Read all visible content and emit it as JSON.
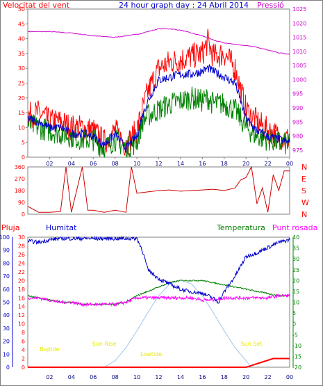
{
  "header": {
    "title": "24 hour graph day : 24 Abril 2014",
    "left_label": "Velocitat del vent",
    "right_label": "Pressió"
  },
  "legend_bottom": {
    "rain": "Pluja",
    "humidity": "Humitat",
    "temperature": "Temperatura",
    "dewpoint": "Punt rosada"
  },
  "colors": {
    "frame": "#808080",
    "wind_gust": "#ff0000",
    "wind_avg": "#008000",
    "wind_mean": "#0000cc",
    "pressure": "#cc00cc",
    "direction": "#cc0000",
    "humidity": "#0000cc",
    "temperature": "#008000",
    "dewpoint": "#ff00ff",
    "rain": "#ff0000",
    "solar": "#9cc6ee",
    "annotation": "#e8e800",
    "title": "#0000cc",
    "left_title": "#ff0000",
    "right_title": "#cc00cc"
  },
  "chart_data": [
    {
      "type": "line",
      "title": "24 hour graph day : 24 Abril 2014",
      "ylabel": "Velocitat del vent",
      "y2label": "Pressió",
      "x_ticks": [
        "02",
        "04",
        "06",
        "08",
        "10",
        "12",
        "14",
        "16",
        "18",
        "20",
        "22",
        "00"
      ],
      "x_hours": [
        2,
        4,
        6,
        8,
        10,
        12,
        14,
        16,
        18,
        20,
        22,
        24
      ],
      "ylim": [
        0,
        50
      ],
      "y_ticks": [
        0,
        5,
        10,
        15,
        20,
        25,
        30,
        35,
        40,
        45,
        50
      ],
      "y2lim": [
        972.5,
        1025
      ],
      "y2_ticks": [
        975,
        980,
        985,
        990,
        995,
        1000,
        1005,
        1010,
        1015,
        1020,
        1025
      ],
      "series": [
        {
          "name": "wind_gust",
          "x": [
            0,
            1,
            2,
            3,
            4,
            5,
            6,
            7,
            8,
            9,
            10,
            10.5,
            11,
            12,
            13,
            14,
            15,
            16,
            16.5,
            17,
            18,
            19,
            20,
            21,
            22,
            23,
            24
          ],
          "values": [
            14,
            15,
            12,
            12,
            10,
            10,
            9,
            5,
            9,
            4,
            9,
            16,
            22,
            30,
            32,
            33,
            34,
            35,
            39,
            34,
            35,
            30,
            16,
            12,
            9,
            7,
            6
          ]
        },
        {
          "name": "wind_avg",
          "x": [
            0,
            1,
            2,
            3,
            4,
            5,
            6,
            7,
            8,
            9,
            10,
            10.5,
            11,
            12,
            13,
            14,
            15,
            16,
            16.5,
            17,
            18,
            19,
            20,
            21,
            22,
            23,
            24
          ],
          "values": [
            11,
            10,
            9,
            8,
            7,
            6,
            6,
            3,
            6,
            3,
            5,
            12,
            14,
            16,
            18,
            19,
            20,
            19,
            20,
            18,
            18,
            16,
            10,
            7,
            6,
            5,
            4
          ]
        },
        {
          "name": "wind_mean",
          "x": [
            0,
            1,
            2,
            3,
            4,
            5,
            6,
            7,
            8,
            9,
            10,
            10.5,
            11,
            12,
            13,
            14,
            15,
            16,
            16.5,
            17,
            18,
            19,
            20,
            21,
            22,
            23,
            24
          ],
          "values": [
            13,
            12,
            10,
            10,
            8,
            8,
            7,
            4,
            8,
            3,
            7,
            14,
            19,
            26,
            27,
            28,
            28,
            29,
            30,
            29,
            27,
            25,
            13,
            9,
            7,
            6,
            5
          ]
        },
        {
          "name": "pressure",
          "y_axis": "right",
          "x": [
            0,
            2,
            4,
            6,
            8,
            10,
            11,
            12,
            13,
            14,
            15,
            16,
            17,
            18,
            19,
            20,
            21,
            22,
            23,
            24
          ],
          "values": [
            1017,
            1017,
            1016.5,
            1015.5,
            1015,
            1016,
            1017,
            1018,
            1018,
            1017.5,
            1016.5,
            1015.5,
            1014,
            1013,
            1012.5,
            1012,
            1011.5,
            1010.5,
            1009.5,
            1009
          ]
        }
      ]
    },
    {
      "type": "line",
      "ylabel": "",
      "y_ticks": [
        0,
        90,
        180,
        270,
        360
      ],
      "ylim": [
        0,
        360
      ],
      "y2_ticks": [
        "N",
        "W",
        "S",
        "E",
        "N"
      ],
      "series": [
        {
          "name": "direction",
          "x": [
            0,
            1,
            2,
            3,
            3.5,
            4,
            5,
            5.5,
            6,
            7,
            8,
            9,
            9.5,
            10,
            11,
            12,
            13,
            14,
            15,
            16,
            17,
            18,
            19,
            19.5,
            20,
            20.5,
            21,
            21.5,
            22,
            22.5,
            23,
            23.5,
            24
          ],
          "values": [
            60,
            15,
            15,
            20,
            360,
            15,
            360,
            30,
            30,
            15,
            30,
            15,
            360,
            160,
            170,
            180,
            185,
            175,
            180,
            185,
            190,
            180,
            200,
            260,
            280,
            360,
            80,
            200,
            15,
            300,
            180,
            330,
            330
          ]
        }
      ]
    },
    {
      "type": "line",
      "ylabel": "Humitat",
      "y_ticks": [
        0,
        10,
        20,
        30,
        40,
        50,
        60,
        70,
        80,
        90,
        100
      ],
      "ylim": [
        0,
        100
      ],
      "y_rain_ticks": [
        0,
        2,
        4,
        6,
        8,
        10,
        12,
        14,
        16,
        18,
        20,
        22,
        24,
        26,
        28,
        30
      ],
      "y_rain_lim": [
        0,
        30
      ],
      "y2_ticks": [
        -20,
        -15,
        -10,
        -5,
        0,
        5,
        10,
        15,
        20,
        25,
        30,
        35,
        40
      ],
      "y2lim": [
        -20,
        40
      ],
      "annotations": [
        {
          "text": "Sun Rise",
          "hour": 7.0
        },
        {
          "text": "Sun Set",
          "hour": 20.5
        },
        {
          "text": "Lowtide",
          "hour": 11.3
        },
        {
          "text": "Bajtide",
          "hour": 2.0
        }
      ],
      "series": [
        {
          "name": "humidity",
          "x": [
            0,
            1,
            2,
            3,
            4,
            5,
            6,
            7,
            8,
            9,
            10,
            10.5,
            11,
            12,
            13,
            14,
            15,
            16,
            17,
            17.5,
            18,
            19,
            20,
            21,
            22,
            23,
            24
          ],
          "values": [
            97,
            96,
            98,
            99,
            99,
            99,
            99,
            99,
            99,
            99,
            99,
            90,
            75,
            68,
            64,
            60,
            58,
            57,
            53,
            50,
            58,
            70,
            85,
            88,
            92,
            96,
            98
          ]
        },
        {
          "name": "temperature",
          "x": [
            0,
            1,
            2,
            3,
            4,
            5,
            6,
            7,
            8,
            9,
            10,
            11,
            12,
            13,
            14,
            15,
            16,
            17,
            18,
            19,
            20,
            21,
            22,
            23,
            24
          ],
          "values": [
            13,
            12,
            11,
            10,
            10,
            9,
            9,
            9,
            9,
            10,
            13,
            15,
            17,
            19,
            20,
            20,
            20,
            19,
            18,
            17,
            16,
            15,
            14,
            13,
            13
          ]
        },
        {
          "name": "dewpoint",
          "x": [
            0,
            1,
            2,
            3,
            4,
            5,
            6,
            7,
            8,
            9,
            10,
            11,
            12,
            13,
            14,
            15,
            16,
            17,
            18,
            19,
            20,
            21,
            22,
            23,
            24
          ],
          "values": [
            12,
            12,
            11,
            10,
            10,
            9,
            9,
            9,
            9,
            10,
            12,
            12,
            12,
            12,
            12,
            12,
            11,
            11,
            12,
            12,
            12,
            12,
            12,
            13,
            13
          ]
        },
        {
          "name": "rain",
          "x": [
            0,
            20,
            20.4,
            21,
            22,
            22.5,
            23,
            24
          ],
          "values": [
            0,
            0,
            0.3,
            0.8,
            1.6,
            2.0,
            2.0,
            2.0
          ]
        },
        {
          "name": "solar",
          "x": [
            7,
            8,
            9,
            10,
            11,
            12,
            13,
            14,
            15,
            16,
            17,
            18,
            19,
            20,
            20.5
          ],
          "values": [
            0,
            5,
            15,
            28,
            42,
            55,
            64,
            67,
            64,
            55,
            42,
            28,
            15,
            5,
            0
          ]
        }
      ]
    }
  ]
}
